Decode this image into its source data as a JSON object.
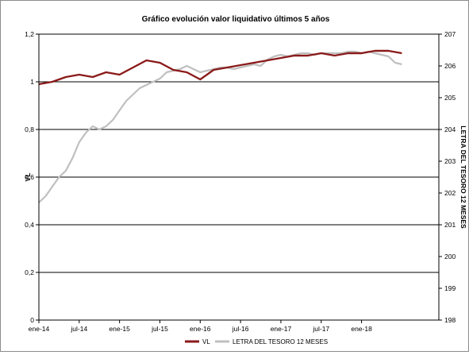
{
  "chart_data": {
    "type": "line",
    "title": "Gráfico evolución valor liquidativo últimos 5 años",
    "ylabel": "VL",
    "y2label": "LETRA DEL TESORO 12 MESES",
    "ylim": [
      0,
      1.2
    ],
    "y2lim": [
      198,
      207
    ],
    "y_ticks": [
      "0",
      "0,2",
      "0,4",
      "0,6",
      "0,8",
      "1",
      "1,2"
    ],
    "y2_ticks": [
      "198",
      "199",
      "200",
      "201",
      "202",
      "203",
      "204",
      "205",
      "206",
      "207"
    ],
    "x_ticks": [
      "ene-14",
      "jul-14",
      "ene-15",
      "jul-15",
      "ene-16",
      "jul-16",
      "ene-17",
      "jul-17",
      "ene-18"
    ],
    "grid": "horizontal",
    "legend_position": "bottom",
    "series": [
      {
        "name": "VL",
        "axis": "left",
        "color": "#8b1a1a",
        "points": [
          [
            "ene-14",
            0.99
          ],
          [
            "mar-14",
            1.0
          ],
          [
            "may-14",
            1.02
          ],
          [
            "jul-14",
            1.03
          ],
          [
            "sep-14",
            1.02
          ],
          [
            "nov-14",
            1.04
          ],
          [
            "ene-15",
            1.03
          ],
          [
            "mar-15",
            1.06
          ],
          [
            "may-15",
            1.09
          ],
          [
            "jul-15",
            1.08
          ],
          [
            "sep-15",
            1.05
          ],
          [
            "nov-15",
            1.04
          ],
          [
            "ene-16",
            1.01
          ],
          [
            "mar-16",
            1.05
          ],
          [
            "may-16",
            1.06
          ],
          [
            "jul-16",
            1.07
          ],
          [
            "sep-16",
            1.08
          ],
          [
            "nov-16",
            1.09
          ],
          [
            "ene-17",
            1.1
          ],
          [
            "mar-17",
            1.11
          ],
          [
            "may-17",
            1.11
          ],
          [
            "jul-17",
            1.12
          ],
          [
            "sep-17",
            1.11
          ],
          [
            "nov-17",
            1.12
          ],
          [
            "ene-18",
            1.12
          ],
          [
            "mar-18",
            1.13
          ],
          [
            "may-18",
            1.13
          ],
          [
            "jul-18",
            1.12
          ]
        ]
      },
      {
        "name": "LETRA DEL TESORO 12 MESES",
        "axis": "right",
        "color": "#bfbfbf",
        "points": [
          [
            "ene-14",
            201.7
          ],
          [
            "feb-14",
            201.9
          ],
          [
            "mar-14",
            202.2
          ],
          [
            "abr-14",
            202.5
          ],
          [
            "may-14",
            202.7
          ],
          [
            "jun-14",
            203.1
          ],
          [
            "jul-14",
            203.6
          ],
          [
            "ago-14",
            203.9
          ],
          [
            "sep-14",
            204.1
          ],
          [
            "oct-14",
            204.0
          ],
          [
            "nov-14",
            204.1
          ],
          [
            "dic-14",
            204.3
          ],
          [
            "ene-15",
            204.6
          ],
          [
            "feb-15",
            204.9
          ],
          [
            "mar-15",
            205.1
          ],
          [
            "abr-15",
            205.3
          ],
          [
            "may-15",
            205.4
          ],
          [
            "jun-15",
            205.5
          ],
          [
            "jul-15",
            205.6
          ],
          [
            "ago-15",
            205.8
          ],
          [
            "sep-15",
            205.85
          ],
          [
            "oct-15",
            205.9
          ],
          [
            "nov-15",
            206.0
          ],
          [
            "dic-15",
            205.9
          ],
          [
            "ene-16",
            205.8
          ],
          [
            "feb-16",
            205.85
          ],
          [
            "mar-16",
            205.9
          ],
          [
            "abr-16",
            205.95
          ],
          [
            "may-16",
            205.95
          ],
          [
            "jun-16",
            205.9
          ],
          [
            "jul-16",
            205.95
          ],
          [
            "ago-16",
            206.0
          ],
          [
            "sep-16",
            206.05
          ],
          [
            "oct-16",
            206.0
          ],
          [
            "nov-16",
            206.2
          ],
          [
            "dic-16",
            206.3
          ],
          [
            "ene-17",
            206.35
          ],
          [
            "feb-17",
            206.3
          ],
          [
            "mar-17",
            206.35
          ],
          [
            "abr-17",
            206.4
          ],
          [
            "may-17",
            206.4
          ],
          [
            "jun-17",
            206.35
          ],
          [
            "jul-17",
            206.4
          ],
          [
            "ago-17",
            206.4
          ],
          [
            "sep-17",
            206.4
          ],
          [
            "oct-17",
            206.4
          ],
          [
            "nov-17",
            206.45
          ],
          [
            "dic-17",
            206.45
          ],
          [
            "ene-18",
            206.4
          ],
          [
            "feb-18",
            206.45
          ],
          [
            "mar-18",
            206.4
          ],
          [
            "abr-18",
            206.35
          ],
          [
            "may-18",
            206.3
          ],
          [
            "jun-18",
            206.1
          ],
          [
            "jul-18",
            206.05
          ]
        ]
      }
    ]
  }
}
